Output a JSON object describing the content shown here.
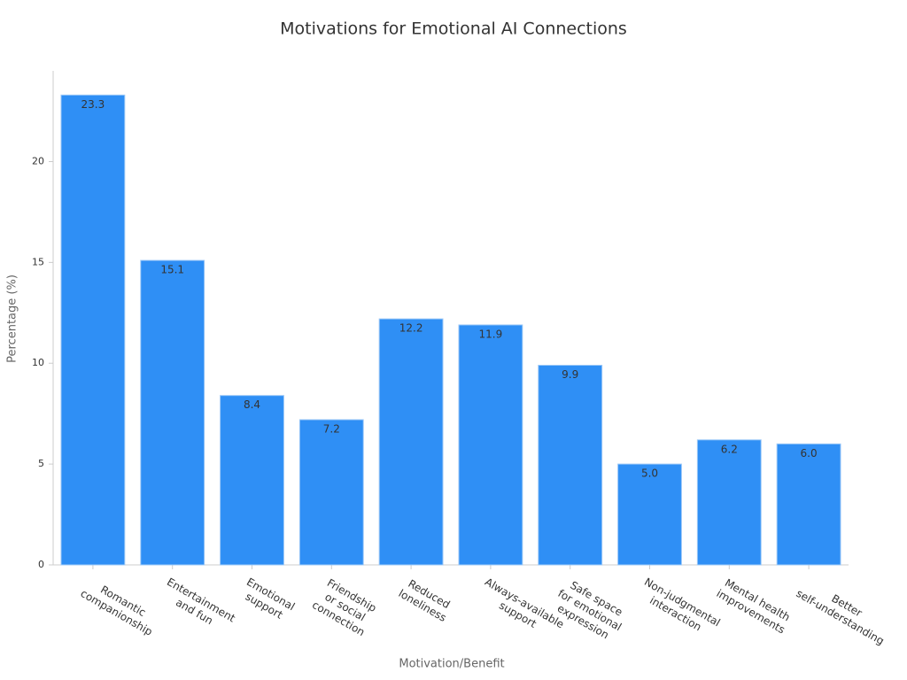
{
  "chart_data": {
    "type": "bar",
    "title": "Motivations for Emotional AI Connections",
    "x_label": "Motivation/Benefit",
    "y_label": "Percentage (%)",
    "categories": [
      "Romantic\ncompanionship",
      "Entertainment\nand fun",
      "Emotional\nsupport",
      "Friendship\nor social\nconnection",
      "Reduced\nloneliness",
      "Always-available\nsupport",
      "Safe space\nfor emotional\nexpression",
      "Non-judgmental\ninteraction",
      "Mental health\nimprovements",
      "Better\nself-understanding"
    ],
    "values": [
      23.3,
      15.1,
      8.4,
      7.2,
      12.2,
      11.9,
      9.9,
      5.0,
      6.2,
      6.0
    ],
    "value_labels": [
      "23.3",
      "15.1",
      "8.4",
      "7.2",
      "12.2",
      "11.9",
      "9.9",
      "5.0",
      "6.2",
      "6.0"
    ],
    "color": "#2f8ff5",
    "ylim": [
      0,
      24.5
    ],
    "yticks": [
      0,
      5,
      10,
      15,
      20
    ],
    "grid": false
  }
}
